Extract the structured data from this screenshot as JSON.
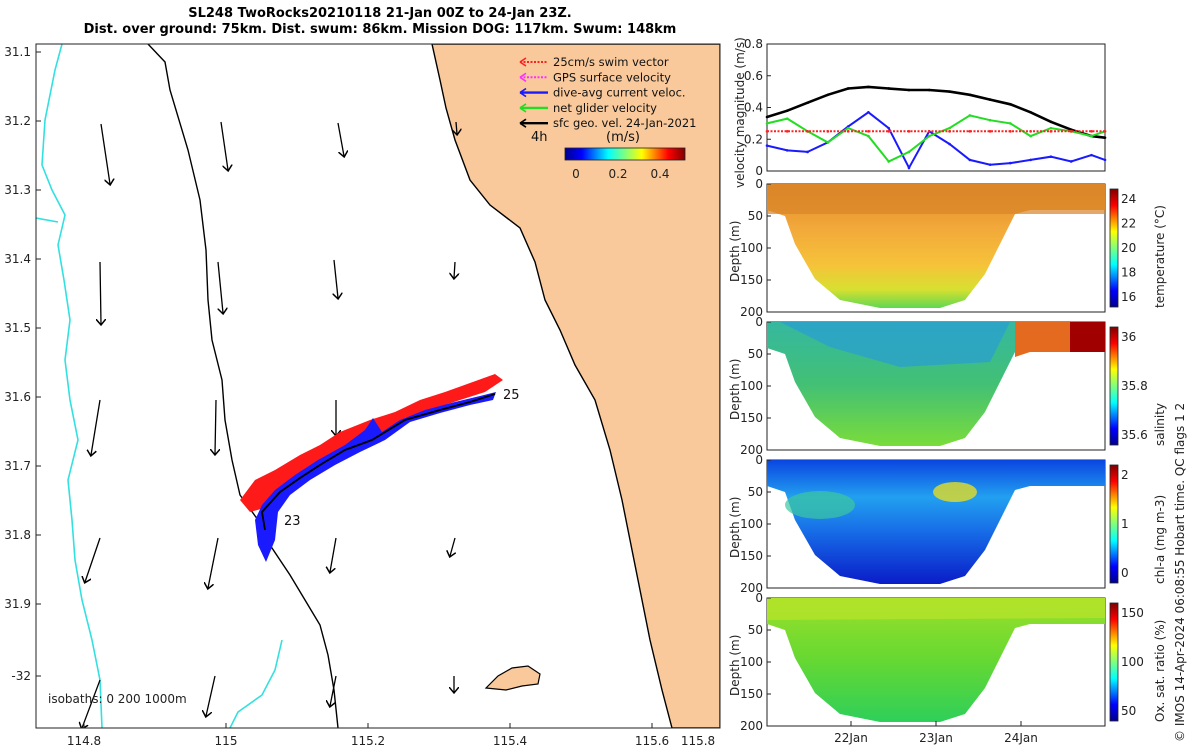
{
  "header": {
    "line1": "SL248 TwoRocks20210118 21-Jan 00Z to 24-Jan 23Z.",
    "line2": "Dist. over ground: 75km. Dist. swum: 86km. Mission DOG: 117km. Swum: 148km"
  },
  "map": {
    "legend": {
      "items": [
        {
          "label": "25cm/s swim vector",
          "color": "#ff2020",
          "style": "dotted"
        },
        {
          "label": "GPS surface velocity",
          "color": "#ff30ff",
          "style": "dotted"
        },
        {
          "label": "dive-avg current veloc.",
          "color": "#1a1aff",
          "style": "solid"
        },
        {
          "label": "net glider velocity",
          "color": "#22dd22",
          "style": "solid"
        },
        {
          "label": "sfc geo. vel. 24-Jan-2021",
          "color": "#000000",
          "style": "solid"
        }
      ],
      "interval": "4h",
      "cbar_title": "(m/s)",
      "cbar_ticks": [
        "0",
        "0.2",
        "0.4"
      ]
    },
    "xticks": [
      "114.8",
      "115",
      "115.2",
      "115.4",
      "115.6",
      "115.8"
    ],
    "yticks": [
      "31.1",
      "31.2",
      "31.3",
      "31.4",
      "31.5",
      "31.6",
      "31.7",
      "31.8",
      "31.9",
      "-32"
    ],
    "isobaths": "isobaths: 0   200  1000m",
    "day_labels": [
      "23",
      "25"
    ],
    "colors": {
      "land": "#f9c99b",
      "isobath_1000": "#33e0e0",
      "coast": "#000000",
      "track_red": "#ff1a1a",
      "track_blue": "#1a1aff"
    }
  },
  "right_panel": {
    "date_ticks": [
      "22Jan",
      "23Jan",
      "24Jan"
    ],
    "credit": "© IMOS 14-Apr-2024 06:08:55 Hobart time. QC flags 1  2",
    "depth_label": "Depth (m)",
    "depth_ticks": [
      "0",
      "50",
      "100",
      "150",
      "200"
    ],
    "panels": [
      {
        "cbar_label": "temperature (°C)",
        "cbar_ticks": [
          "24",
          "22",
          "20",
          "18",
          "16"
        ]
      },
      {
        "cbar_label": "salinity",
        "cbar_ticks": [
          "36",
          "35.8",
          "35.6"
        ]
      },
      {
        "cbar_label": "chl-a (mg m-3)",
        "cbar_ticks": [
          "2",
          "1",
          "0"
        ]
      },
      {
        "cbar_label": "Ox. sat. ratio (%)",
        "cbar_ticks": [
          "150",
          "100",
          "50"
        ]
      }
    ]
  },
  "chart_data": {
    "type": "line",
    "ylabel": "velocity magnitude (m/s)",
    "yticks": [
      "0.8",
      "0.6",
      "0.4",
      "0.2",
      "0"
    ],
    "ylim": [
      0,
      0.8
    ],
    "x": [
      0,
      0.06,
      0.12,
      0.18,
      0.24,
      0.3,
      0.36,
      0.42,
      0.48,
      0.54,
      0.6,
      0.66,
      0.72,
      0.78,
      0.84,
      0.9,
      0.96,
      1.0
    ],
    "series": [
      {
        "color": "#000000",
        "values": [
          0.34,
          0.38,
          0.43,
          0.48,
          0.52,
          0.53,
          0.52,
          0.51,
          0.51,
          0.5,
          0.48,
          0.45,
          0.42,
          0.37,
          0.31,
          0.26,
          0.22,
          0.21
        ]
      },
      {
        "color": "#1a1aff",
        "values": [
          0.16,
          0.13,
          0.12,
          0.18,
          0.28,
          0.37,
          0.27,
          0.02,
          0.25,
          0.17,
          0.07,
          0.04,
          0.05,
          0.07,
          0.09,
          0.06,
          0.1,
          0.07
        ]
      },
      {
        "color": "#22dd22",
        "values": [
          0.3,
          0.33,
          0.25,
          0.18,
          0.27,
          0.22,
          0.06,
          0.12,
          0.22,
          0.27,
          0.35,
          0.32,
          0.3,
          0.22,
          0.27,
          0.25,
          0.22,
          0.25
        ]
      },
      {
        "color": "#ff2020",
        "values": [
          0.25,
          0.25,
          0.25,
          0.25,
          0.25,
          0.25,
          0.25,
          0.25,
          0.25,
          0.25,
          0.25,
          0.25,
          0.25,
          0.25,
          0.25,
          0.25,
          0.25,
          0.25
        ]
      }
    ]
  }
}
